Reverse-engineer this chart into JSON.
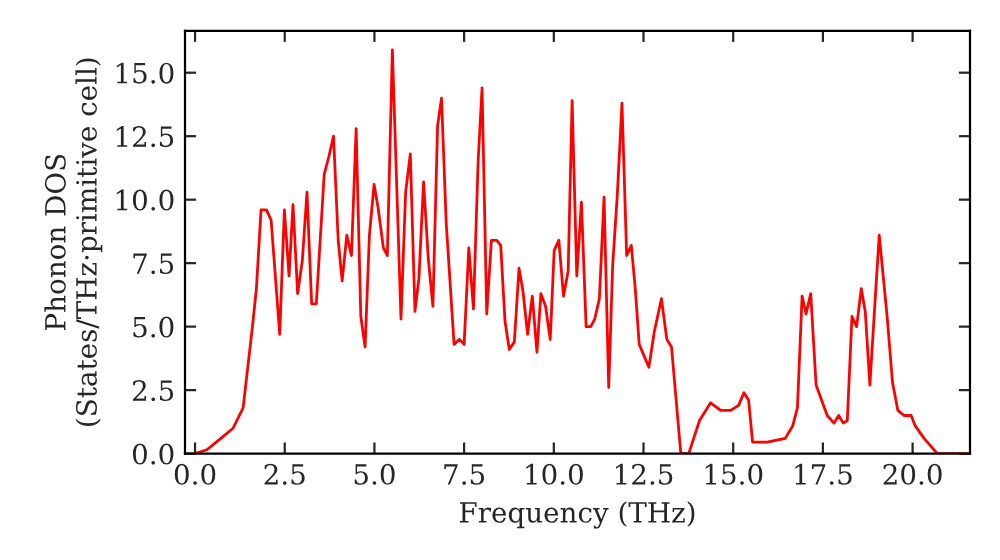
{
  "chart_data": {
    "type": "line",
    "xlabel": "Frequency (THz)",
    "ylabel": "Phonon DOS\n(States/THz·primitive cell)",
    "xlim": [
      -0.28,
      21.6
    ],
    "ylim": [
      0,
      16.65
    ],
    "xticks": [
      {
        "value": 0,
        "label": "0.0"
      },
      {
        "value": 2.5,
        "label": "2.5"
      },
      {
        "value": 5,
        "label": "5.0"
      },
      {
        "value": 7.5,
        "label": "7.5"
      },
      {
        "value": 10,
        "label": "10.0"
      },
      {
        "value": 12.5,
        "label": "12.5"
      },
      {
        "value": 15,
        "label": "15.0"
      },
      {
        "value": 17.5,
        "label": "17.5"
      },
      {
        "value": 20,
        "label": "20.0"
      }
    ],
    "yticks": [
      {
        "value": 0,
        "label": "0.0"
      },
      {
        "value": 2.5,
        "label": "2.5"
      },
      {
        "value": 5,
        "label": "5.0"
      },
      {
        "value": 7.5,
        "label": "7.5"
      },
      {
        "value": 10,
        "label": "10.0"
      },
      {
        "value": 12.5,
        "label": "12.5"
      },
      {
        "value": 15,
        "label": "15.0"
      }
    ],
    "grid": false,
    "legend": false,
    "series": [
      {
        "color": "#ff0000",
        "x": [
          0,
          0.33,
          0.72,
          1.06,
          1.34,
          1.6,
          1.71,
          1.84,
          1.99,
          2.12,
          2.36,
          2.49,
          2.62,
          2.73,
          2.86,
          2.99,
          3.12,
          3.25,
          3.38,
          3.6,
          3.73,
          3.86,
          3.99,
          4.1,
          4.23,
          4.36,
          4.49,
          4.62,
          4.74,
          4.86,
          4.99,
          5.1,
          5.25,
          5.36,
          5.5,
          5.74,
          5.87,
          6.0,
          6.13,
          6.24,
          6.37,
          6.5,
          6.63,
          6.76,
          6.87,
          7.0,
          7.22,
          7.37,
          7.5,
          7.63,
          7.76,
          7.89,
          8.0,
          8.13,
          8.26,
          8.41,
          8.52,
          8.64,
          8.76,
          8.9,
          9.03,
          9.14,
          9.27,
          9.4,
          9.53,
          9.64,
          9.77,
          9.9,
          10.01,
          10.14,
          10.27,
          10.4,
          10.51,
          10.64,
          10.77,
          10.9,
          11.03,
          11.14,
          11.27,
          11.4,
          11.53,
          11.64,
          11.77,
          11.9,
          12.03,
          12.16,
          12.27,
          12.38,
          12.65,
          12.8,
          13.0,
          13.15,
          13.28,
          13.54,
          13.76,
          14.06,
          14.37,
          14.65,
          14.93,
          15.15,
          15.3,
          15.43,
          15.54,
          15.95,
          16.45,
          16.66,
          16.79,
          16.92,
          17.03,
          17.16,
          17.31,
          17.62,
          17.81,
          17.94,
          18.07,
          18.18,
          18.31,
          18.44,
          18.57,
          18.68,
          18.81,
          18.94,
          19.07,
          19.29,
          19.44,
          19.59,
          19.76,
          19.96,
          20.07,
          20.32,
          20.69,
          21.5
        ],
        "values": [
          0,
          0.15,
          0.6,
          1.0,
          1.8,
          5.0,
          6.5,
          9.6,
          9.6,
          9.2,
          4.7,
          9.6,
          7.0,
          9.8,
          6.3,
          7.6,
          10.3,
          5.9,
          5.9,
          11.0,
          11.7,
          12.5,
          8.4,
          6.8,
          8.6,
          7.8,
          12.8,
          5.4,
          4.2,
          8.6,
          10.6,
          9.7,
          8.1,
          7.8,
          15.9,
          5.3,
          10.3,
          11.8,
          5.6,
          6.9,
          10.7,
          7.7,
          5.8,
          12.9,
          14.0,
          9.1,
          4.3,
          4.5,
          4.3,
          8.1,
          5.7,
          11.5,
          14.4,
          5.5,
          8.4,
          8.4,
          8.2,
          5.2,
          4.1,
          4.4,
          7.3,
          6.4,
          4.7,
          6.2,
          4.0,
          6.3,
          5.8,
          4.5,
          8.0,
          8.4,
          6.2,
          7.2,
          13.9,
          7.0,
          9.9,
          5.0,
          5.0,
          5.3,
          6.1,
          10.1,
          2.6,
          7.4,
          10.2,
          13.8,
          7.8,
          8.2,
          6.5,
          4.3,
          3.4,
          4.8,
          6.1,
          4.5,
          4.2,
          0,
          0,
          1.3,
          2.0,
          1.7,
          1.7,
          1.9,
          2.4,
          2.1,
          0.45,
          0.45,
          0.6,
          1.1,
          1.8,
          6.2,
          5.5,
          6.3,
          2.7,
          1.5,
          1.2,
          1.5,
          1.2,
          1.3,
          5.4,
          5.0,
          6.5,
          5.6,
          2.7,
          5.7,
          8.6,
          5.4,
          2.8,
          1.7,
          1.5,
          1.5,
          1.1,
          0.6,
          0,
          0
        ]
      }
    ]
  }
}
